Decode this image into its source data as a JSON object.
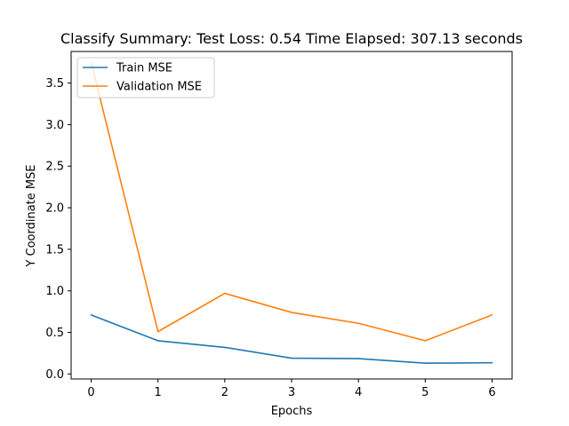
{
  "chart_data": {
    "type": "line",
    "title": "Classify Summary: Test Loss: 0.54 Time Elapsed: 307.13 seconds",
    "xlabel": "Epochs",
    "ylabel": "Y Coordinate MSE",
    "x": [
      0,
      1,
      2,
      3,
      4,
      5,
      6
    ],
    "x_ticks": [
      "0",
      "1",
      "2",
      "3",
      "4",
      "5",
      "6"
    ],
    "y_ticks": [
      "0.0",
      "0.5",
      "1.0",
      "1.5",
      "2.0",
      "2.5",
      "3.0",
      "3.5"
    ],
    "xlim": [
      -0.3,
      6.3
    ],
    "ylim": [
      -0.06,
      3.88
    ],
    "grid": false,
    "legend_position": "top-left",
    "series": [
      {
        "name": "Train MSE",
        "color": "#1f77b4",
        "values": [
          0.71,
          0.4,
          0.32,
          0.19,
          0.185,
          0.13,
          0.135
        ]
      },
      {
        "name": "Validation MSE",
        "color": "#ff7f0e",
        "values": [
          3.75,
          0.51,
          0.97,
          0.74,
          0.61,
          0.4,
          0.71
        ]
      }
    ]
  }
}
